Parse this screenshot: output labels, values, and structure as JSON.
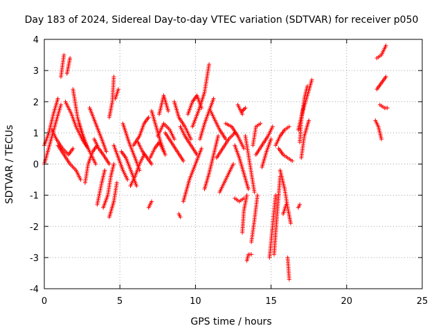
{
  "chart_data": {
    "type": "scatter",
    "title": "Day 183 of 2024, Sidereal Day-to-day VTEC variation (SDTVAR) for receiver p050",
    "xlabel": "GPS time / hours",
    "ylabel": "SDTVAR / TECUs",
    "xlim": [
      0,
      25
    ],
    "ylim": [
      -4,
      4
    ],
    "xticks": [
      "0",
      "5",
      "10",
      "15",
      "20",
      "25"
    ],
    "yticks": [
      "4",
      "3",
      "2",
      "1",
      "0",
      "-1",
      "-2",
      "-3",
      "-4"
    ],
    "grid": true,
    "marker": "+",
    "color": "#ff0000",
    "series": [
      {
        "name": "SDTVAR",
        "tracks": [
          [
            [
              0.0,
              0.6
            ],
            [
              0.3,
              1.0
            ],
            [
              0.6,
              1.6
            ],
            [
              0.9,
              2.1
            ]
          ],
          [
            [
              0.0,
              0.0
            ],
            [
              0.4,
              0.7
            ],
            [
              0.8,
              1.4
            ],
            [
              1.1,
              1.9
            ]
          ],
          [
            [
              1.1,
              2.8
            ],
            [
              1.3,
              3.5
            ]
          ],
          [
            [
              1.5,
              2.9
            ],
            [
              1.7,
              3.4
            ]
          ],
          [
            [
              0.5,
              1.1
            ],
            [
              0.8,
              0.8
            ],
            [
              1.2,
              0.5
            ],
            [
              1.6,
              0.3
            ],
            [
              1.9,
              0.5
            ]
          ],
          [
            [
              1.4,
              2.0
            ],
            [
              1.8,
              1.6
            ],
            [
              2.1,
              1.2
            ],
            [
              2.5,
              0.8
            ],
            [
              2.9,
              0.5
            ]
          ],
          [
            [
              0.9,
              0.6
            ],
            [
              1.3,
              0.3
            ],
            [
              1.7,
              0.0
            ],
            [
              2.1,
              -0.2
            ],
            [
              2.4,
              -0.5
            ]
          ],
          [
            [
              1.9,
              2.4
            ],
            [
              2.2,
              1.5
            ],
            [
              2.5,
              1.0
            ],
            [
              2.8,
              0.6
            ]
          ],
          [
            [
              2.3,
              1.3
            ],
            [
              2.6,
              0.8
            ],
            [
              3.0,
              0.4
            ],
            [
              3.4,
              0.0
            ]
          ],
          [
            [
              2.7,
              -0.6
            ],
            [
              2.9,
              0.0
            ],
            [
              3.2,
              0.4
            ],
            [
              3.5,
              0.6
            ]
          ],
          [
            [
              3.0,
              1.8
            ],
            [
              3.4,
              1.3
            ],
            [
              3.8,
              0.8
            ],
            [
              4.1,
              0.4
            ]
          ],
          [
            [
              3.3,
              0.8
            ],
            [
              3.6,
              0.5
            ],
            [
              3.9,
              0.3
            ],
            [
              4.3,
              0.0
            ]
          ],
          [
            [
              3.5,
              -1.3
            ],
            [
              3.8,
              -0.6
            ],
            [
              4.0,
              -0.2
            ]
          ],
          [
            [
              3.9,
              -1.4
            ],
            [
              4.2,
              -1.0
            ],
            [
              4.4,
              -0.4
            ],
            [
              4.6,
              0.0
            ]
          ],
          [
            [
              4.3,
              -1.7
            ],
            [
              4.6,
              -1.2
            ],
            [
              4.8,
              -0.6
            ]
          ],
          [
            [
              4.3,
              1.5
            ],
            [
              4.5,
              2.0
            ],
            [
              4.6,
              2.8
            ]
          ],
          [
            [
              4.7,
              2.1
            ],
            [
              4.9,
              2.4
            ]
          ],
          [
            [
              4.6,
              0.6
            ],
            [
              4.9,
              0.2
            ],
            [
              5.2,
              -0.2
            ],
            [
              5.5,
              -0.5
            ]
          ],
          [
            [
              5.1,
              0.4
            ],
            [
              5.4,
              0.2
            ],
            [
              5.8,
              -0.3
            ],
            [
              6.1,
              -0.7
            ]
          ],
          [
            [
              5.2,
              1.3
            ],
            [
              5.6,
              0.7
            ],
            [
              6.0,
              0.2
            ],
            [
              6.3,
              -0.2
            ]
          ],
          [
            [
              5.7,
              -0.7
            ],
            [
              6.0,
              -0.4
            ],
            [
              6.3,
              0.0
            ],
            [
              6.6,
              0.3
            ]
          ],
          [
            [
              5.9,
              0.6
            ],
            [
              6.3,
              0.9
            ],
            [
              6.6,
              1.3
            ],
            [
              6.9,
              1.5
            ]
          ],
          [
            [
              6.2,
              0.7
            ],
            [
              6.5,
              0.4
            ],
            [
              6.8,
              0.2
            ],
            [
              7.1,
              0.0
            ]
          ],
          [
            [
              6.9,
              -1.4
            ],
            [
              7.1,
              -1.2
            ]
          ],
          [
            [
              7.1,
              1.7
            ],
            [
              7.4,
              1.2
            ],
            [
              7.7,
              0.7
            ],
            [
              8.0,
              0.3
            ]
          ],
          [
            [
              7.0,
              0.2
            ],
            [
              7.3,
              0.5
            ],
            [
              7.6,
              0.7
            ],
            [
              7.9,
              0.4
            ]
          ],
          [
            [
              7.6,
              1.6
            ],
            [
              7.9,
              2.2
            ],
            [
              8.2,
              1.7
            ]
          ],
          [
            [
              7.5,
              0.9
            ],
            [
              7.9,
              1.3
            ],
            [
              8.3,
              1.1
            ],
            [
              8.6,
              0.8
            ]
          ],
          [
            [
              8.0,
              1.0
            ],
            [
              8.4,
              0.7
            ],
            [
              8.8,
              0.4
            ],
            [
              9.2,
              0.1
            ]
          ],
          [
            [
              8.6,
              2.0
            ],
            [
              8.9,
              1.5
            ],
            [
              9.3,
              1.2
            ],
            [
              9.7,
              0.8
            ]
          ],
          [
            [
              9.0,
              1.2
            ],
            [
              9.3,
              0.9
            ],
            [
              9.7,
              0.6
            ],
            [
              10.1,
              0.3
            ]
          ],
          [
            [
              8.9,
              -1.6
            ],
            [
              9.0,
              -1.7
            ]
          ],
          [
            [
              9.2,
              -1.2
            ],
            [
              9.6,
              -0.5
            ],
            [
              10.0,
              0.0
            ],
            [
              10.4,
              0.5
            ]
          ],
          [
            [
              9.5,
              1.6
            ],
            [
              9.8,
              2.0
            ],
            [
              10.1,
              2.2
            ],
            [
              10.4,
              1.8
            ]
          ],
          [
            [
              9.8,
              1.2
            ],
            [
              10.2,
              1.7
            ],
            [
              10.6,
              2.3
            ],
            [
              10.9,
              3.2
            ]
          ],
          [
            [
              10.3,
              0.8
            ],
            [
              10.6,
              1.3
            ],
            [
              10.9,
              1.7
            ],
            [
              11.2,
              2.1
            ]
          ],
          [
            [
              10.6,
              -0.8
            ],
            [
              10.9,
              -0.3
            ],
            [
              11.2,
              0.3
            ],
            [
              11.5,
              0.9
            ]
          ],
          [
            [
              11.0,
              1.7
            ],
            [
              11.3,
              1.4
            ],
            [
              11.6,
              1.1
            ],
            [
              12.0,
              0.8
            ]
          ],
          [
            [
              11.4,
              0.2
            ],
            [
              11.8,
              0.5
            ],
            [
              12.2,
              0.8
            ],
            [
              12.6,
              1.0
            ]
          ],
          [
            [
              11.6,
              -0.9
            ],
            [
              11.9,
              -0.6
            ],
            [
              12.2,
              -0.3
            ],
            [
              12.5,
              0.0
            ]
          ],
          [
            [
              12.0,
              1.3
            ],
            [
              12.4,
              1.2
            ],
            [
              12.8,
              0.9
            ],
            [
              13.2,
              0.5
            ]
          ],
          [
            [
              12.6,
              -1.1
            ],
            [
              12.9,
              -1.2
            ],
            [
              13.2,
              -1.1
            ]
          ],
          [
            [
              12.6,
              0.6
            ],
            [
              12.9,
              0.2
            ],
            [
              13.2,
              -0.3
            ],
            [
              13.5,
              -0.8
            ]
          ],
          [
            [
              12.8,
              1.9
            ],
            [
              13.1,
              1.6
            ]
          ],
          [
            [
              13.1,
              1.7
            ],
            [
              13.3,
              1.8
            ]
          ],
          [
            [
              13.1,
              -2.2
            ],
            [
              13.2,
              -1.5
            ],
            [
              13.4,
              -1.0
            ]
          ],
          [
            [
              13.3,
              0.9
            ],
            [
              13.5,
              0.3
            ],
            [
              13.7,
              -0.3
            ],
            [
              13.9,
              -0.9
            ]
          ],
          [
            [
              13.4,
              -3.1
            ],
            [
              13.5,
              -2.9
            ],
            [
              13.7,
              -2.9
            ]
          ],
          [
            [
              13.7,
              -2.5
            ],
            [
              13.9,
              -1.8
            ],
            [
              14.1,
              -1.0
            ]
          ],
          [
            [
              13.8,
              0.6
            ],
            [
              14.0,
              1.2
            ],
            [
              14.3,
              1.3
            ]
          ],
          [
            [
              14.0,
              0.3
            ],
            [
              14.4,
              0.6
            ],
            [
              14.8,
              0.9
            ],
            [
              15.1,
              1.2
            ]
          ],
          [
            [
              14.4,
              -0.1
            ],
            [
              14.7,
              0.4
            ],
            [
              15.0,
              0.8
            ]
          ],
          [
            [
              14.9,
              -3.0
            ],
            [
              15.1,
              -2.0
            ],
            [
              15.3,
              -1.0
            ]
          ],
          [
            [
              15.2,
              -2.9
            ],
            [
              15.4,
              -1.6
            ],
            [
              15.6,
              -0.4
            ]
          ],
          [
            [
              15.3,
              0.6
            ],
            [
              15.6,
              0.9
            ],
            [
              15.9,
              1.1
            ],
            [
              16.2,
              1.2
            ]
          ],
          [
            [
              15.6,
              -0.2
            ],
            [
              15.9,
              -0.8
            ],
            [
              16.1,
              -1.4
            ],
            [
              16.3,
              -1.9
            ]
          ],
          [
            [
              15.8,
              -1.6
            ],
            [
              16.0,
              -1.3
            ]
          ],
          [
            [
              16.1,
              -3.0
            ],
            [
              16.2,
              -3.7
            ]
          ],
          [
            [
              15.5,
              0.5
            ],
            [
              15.8,
              0.3
            ],
            [
              16.1,
              0.2
            ],
            [
              16.4,
              0.1
            ]
          ],
          [
            [
              16.8,
              -1.4
            ],
            [
              16.9,
              -1.3
            ]
          ],
          [
            [
              16.9,
              0.7
            ],
            [
              17.0,
              1.4
            ],
            [
              17.2,
              2.1
            ],
            [
              17.4,
              2.5
            ]
          ],
          [
            [
              16.8,
              1.1
            ],
            [
              17.1,
              1.7
            ],
            [
              17.4,
              2.2
            ],
            [
              17.7,
              2.7
            ]
          ],
          [
            [
              17.0,
              0.2
            ],
            [
              17.2,
              0.9
            ],
            [
              17.5,
              1.4
            ]
          ],
          [
            [
              22.0,
              3.4
            ],
            [
              22.3,
              3.5
            ],
            [
              22.6,
              3.8
            ]
          ],
          [
            [
              22.0,
              2.4
            ],
            [
              22.3,
              2.6
            ],
            [
              22.6,
              2.8
            ]
          ],
          [
            [
              21.9,
              1.4
            ],
            [
              22.1,
              1.2
            ],
            [
              22.3,
              0.8
            ]
          ],
          [
            [
              22.2,
              1.9
            ],
            [
              22.5,
              1.8
            ],
            [
              22.7,
              1.8
            ]
          ]
        ]
      }
    ]
  }
}
